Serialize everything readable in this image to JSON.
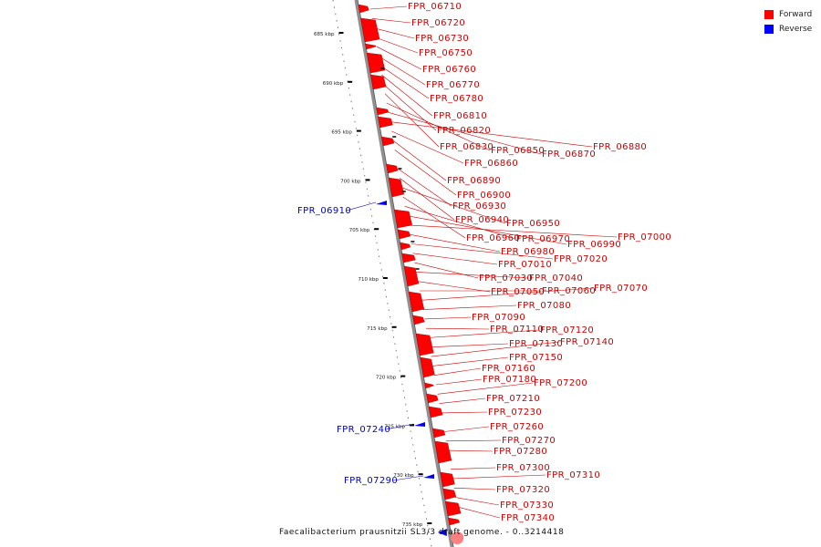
{
  "caption": "Faecalibacterium prausnitzii SL3/3 draft genome. - 0..3214418",
  "legend": [
    {
      "label": "Forward",
      "color": "#ff0000"
    },
    {
      "label": "Reverse",
      "color": "#0000ff"
    }
  ],
  "colors": {
    "forward": "#ff0000",
    "reverse": "#0000ff",
    "backbone": "#909090",
    "label_forward": "#cc0000",
    "label_reverse": "#0000cc"
  },
  "ruler_ticks": [
    {
      "kbp": 685,
      "label": "685 kbp"
    },
    {
      "kbp": 690,
      "label": "690 kbp"
    },
    {
      "kbp": 695,
      "label": "695 kbp"
    },
    {
      "kbp": 700,
      "label": "700 kbp"
    },
    {
      "kbp": 705,
      "label": "705 kbp"
    },
    {
      "kbp": 710,
      "label": "710 kbp"
    },
    {
      "kbp": 715,
      "label": "715 kbp"
    },
    {
      "kbp": 720,
      "label": "720 kbp"
    },
    {
      "kbp": 725,
      "label": "725 kbp"
    },
    {
      "kbp": 730,
      "label": "730 kbp"
    },
    {
      "kbp": 735,
      "label": "735 kbp"
    }
  ],
  "genes": [
    {
      "id": "FPR_06710",
      "strand": "forward"
    },
    {
      "id": "FPR_06720",
      "strand": "forward"
    },
    {
      "id": "FPR_06730",
      "strand": "forward"
    },
    {
      "id": "FPR_06750",
      "strand": "forward"
    },
    {
      "id": "FPR_06760",
      "strand": "forward"
    },
    {
      "id": "FPR_06770",
      "strand": "forward"
    },
    {
      "id": "FPR_06780",
      "strand": "forward"
    },
    {
      "id": "FPR_06810",
      "strand": "forward"
    },
    {
      "id": "FPR_06820",
      "strand": "forward"
    },
    {
      "id": "FPR_06830",
      "strand": "forward"
    },
    {
      "id": "FPR_06850",
      "strand": "forward"
    },
    {
      "id": "FPR_06870",
      "strand": "forward"
    },
    {
      "id": "FPR_06880",
      "strand": "forward"
    },
    {
      "id": "FPR_06860",
      "strand": "forward"
    },
    {
      "id": "FPR_06890",
      "strand": "forward"
    },
    {
      "id": "FPR_06900",
      "strand": "forward"
    },
    {
      "id": "FPR_06910",
      "strand": "reverse"
    },
    {
      "id": "FPR_06930",
      "strand": "forward"
    },
    {
      "id": "FPR_06940",
      "strand": "forward"
    },
    {
      "id": "FPR_06950",
      "strand": "forward"
    },
    {
      "id": "FPR_06960",
      "strand": "forward"
    },
    {
      "id": "FPR_06970",
      "strand": "forward"
    },
    {
      "id": "FPR_06990",
      "strand": "forward"
    },
    {
      "id": "FPR_07000",
      "strand": "forward"
    },
    {
      "id": "FPR_06980",
      "strand": "forward"
    },
    {
      "id": "FPR_07020",
      "strand": "forward"
    },
    {
      "id": "FPR_07010",
      "strand": "forward"
    },
    {
      "id": "FPR_07030",
      "strand": "forward"
    },
    {
      "id": "FPR_07040",
      "strand": "forward"
    },
    {
      "id": "FPR_07050",
      "strand": "forward"
    },
    {
      "id": "FPR_07060",
      "strand": "forward"
    },
    {
      "id": "FPR_07070",
      "strand": "forward"
    },
    {
      "id": "FPR_07080",
      "strand": "forward"
    },
    {
      "id": "FPR_07090",
      "strand": "forward"
    },
    {
      "id": "FPR_07110",
      "strand": "forward"
    },
    {
      "id": "FPR_07120",
      "strand": "forward"
    },
    {
      "id": "FPR_07130",
      "strand": "forward"
    },
    {
      "id": "FPR_07140",
      "strand": "forward"
    },
    {
      "id": "FPR_07150",
      "strand": "forward"
    },
    {
      "id": "FPR_07160",
      "strand": "forward"
    },
    {
      "id": "FPR_07180",
      "strand": "forward"
    },
    {
      "id": "FPR_07200",
      "strand": "forward"
    },
    {
      "id": "FPR_07210",
      "strand": "forward"
    },
    {
      "id": "FPR_07230",
      "strand": "forward"
    },
    {
      "id": "FPR_07240",
      "strand": "reverse"
    },
    {
      "id": "FPR_07260",
      "strand": "forward"
    },
    {
      "id": "FPR_07270",
      "strand": "forward"
    },
    {
      "id": "FPR_07280",
      "strand": "forward"
    },
    {
      "id": "FPR_07290",
      "strand": "reverse"
    },
    {
      "id": "FPR_07300",
      "strand": "forward"
    },
    {
      "id": "FPR_07310",
      "strand": "forward"
    },
    {
      "id": "FPR_07320",
      "strand": "forward"
    },
    {
      "id": "FPR_07330",
      "strand": "forward"
    },
    {
      "id": "FPR_07340",
      "strand": "forward"
    }
  ]
}
